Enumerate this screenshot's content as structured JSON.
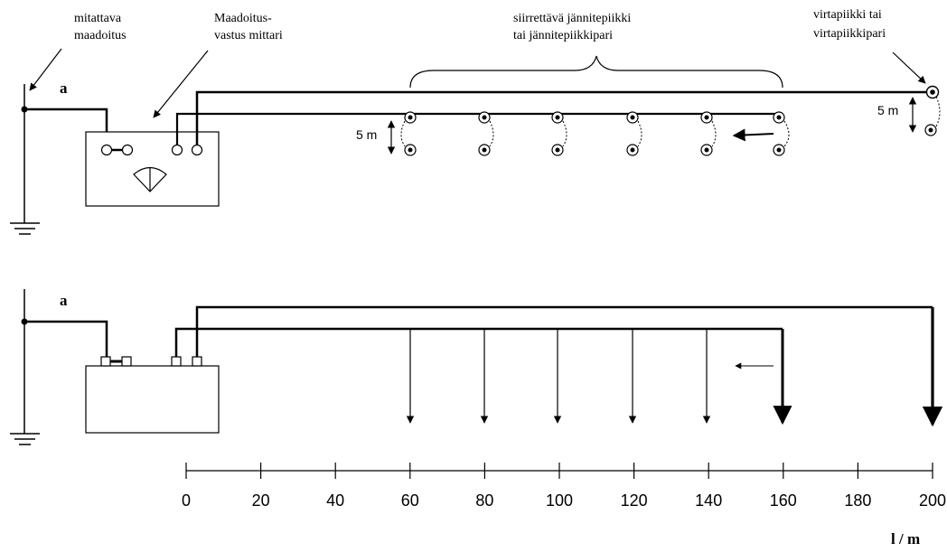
{
  "labels": {
    "measured_earth": [
      "mitattava",
      "maadoitus"
    ],
    "meter": [
      "Maadoitus-",
      "vastus mittari"
    ],
    "moving_probe": [
      "siirrettävä jännitepiikki",
      "tai jännitepiikkipari"
    ],
    "current_probe": [
      "virtapiikki tai",
      "virtapiikkipari"
    ],
    "point_a_top": "a",
    "point_a_bottom": "a",
    "spacing_left": "5 m",
    "spacing_right": "5 m"
  },
  "axis": {
    "ticks": [
      0,
      20,
      40,
      60,
      80,
      100,
      120,
      140,
      160,
      180,
      200
    ],
    "unit_label": "l / m"
  },
  "probe_positions_m": [
    60,
    80,
    100,
    120,
    140,
    160
  ],
  "current_probe_position_m": 200,
  "colors": {
    "ink": "#000000",
    "background": "#ffffff"
  }
}
